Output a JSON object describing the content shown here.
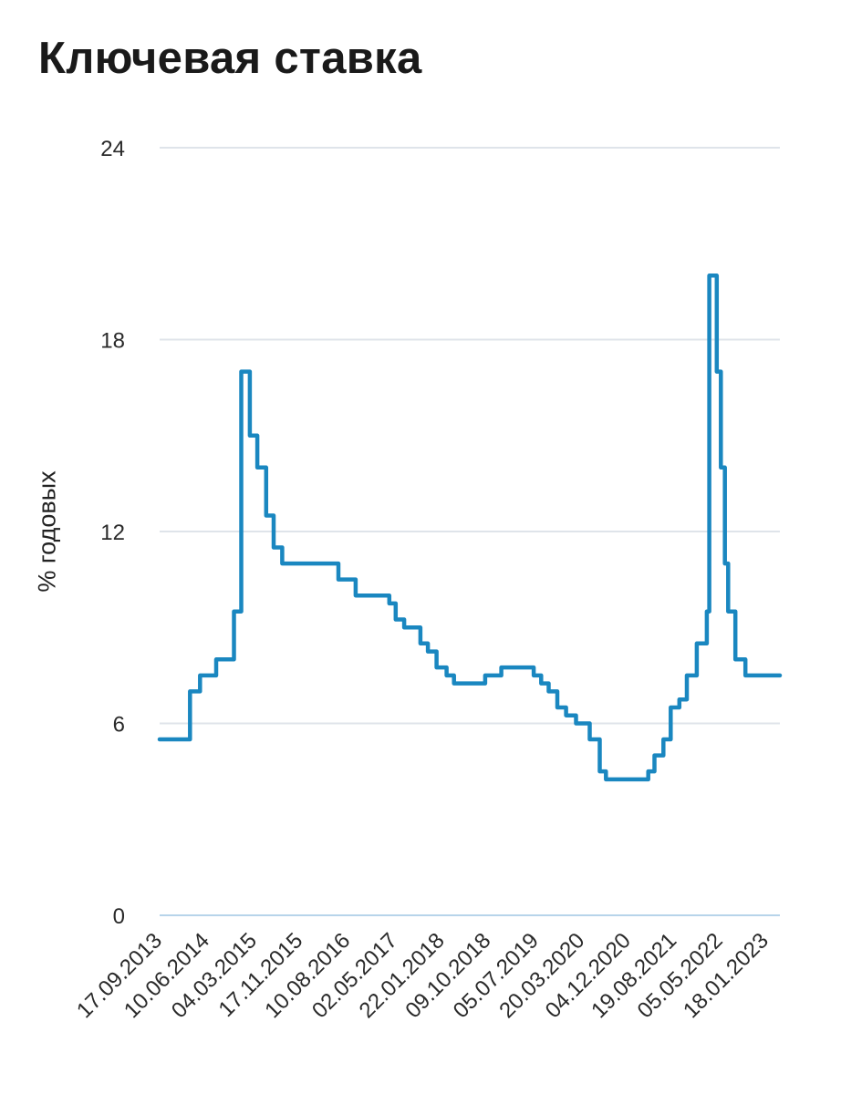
{
  "chart_data": {
    "type": "line",
    "title": "Ключевая ставка",
    "ylabel": "% годовых",
    "xlabel": "",
    "ylim": [
      0,
      24
    ],
    "yticks": [
      0,
      6,
      12,
      18,
      24
    ],
    "xlim": [
      "2013-09-13",
      "2023-04-01"
    ],
    "xticks": [
      {
        "date": "2013-09-17",
        "label": "17.09.2013"
      },
      {
        "date": "2014-06-10",
        "label": "10.06.2014"
      },
      {
        "date": "2015-03-04",
        "label": "04.03.2015"
      },
      {
        "date": "2015-11-17",
        "label": "17.11.2015"
      },
      {
        "date": "2016-08-10",
        "label": "10.08.2016"
      },
      {
        "date": "2017-05-02",
        "label": "02.05.2017"
      },
      {
        "date": "2018-01-22",
        "label": "22.01.2018"
      },
      {
        "date": "2018-10-09",
        "label": "09.10.2018"
      },
      {
        "date": "2019-07-05",
        "label": "05.07.2019"
      },
      {
        "date": "2020-03-20",
        "label": "20.03.2020"
      },
      {
        "date": "2020-12-04",
        "label": "04.12.2020"
      },
      {
        "date": "2021-08-19",
        "label": "19.08.2021"
      },
      {
        "date": "2022-05-05",
        "label": "05.05.2022"
      },
      {
        "date": "2023-01-18",
        "label": "18.01.2023"
      }
    ],
    "series": [
      {
        "name": "Ключевая ставка",
        "color": "#1a87c0",
        "step": true,
        "points": [
          [
            "2013-09-13",
            5.5
          ],
          [
            "2014-03-03",
            7.0
          ],
          [
            "2014-04-28",
            7.5
          ],
          [
            "2014-07-28",
            8.0
          ],
          [
            "2014-11-05",
            9.5
          ],
          [
            "2014-12-16",
            17.0
          ],
          [
            "2015-02-02",
            15.0
          ],
          [
            "2015-03-16",
            14.0
          ],
          [
            "2015-05-05",
            12.5
          ],
          [
            "2015-06-16",
            11.5
          ],
          [
            "2015-08-03",
            11.0
          ],
          [
            "2016-06-14",
            10.5
          ],
          [
            "2016-09-19",
            10.0
          ],
          [
            "2017-03-27",
            9.75
          ],
          [
            "2017-05-02",
            9.25
          ],
          [
            "2017-06-19",
            9.0
          ],
          [
            "2017-09-18",
            8.5
          ],
          [
            "2017-10-30",
            8.25
          ],
          [
            "2017-12-18",
            7.75
          ],
          [
            "2018-02-12",
            7.5
          ],
          [
            "2018-03-26",
            7.25
          ],
          [
            "2018-09-17",
            7.5
          ],
          [
            "2018-12-17",
            7.75
          ],
          [
            "2019-06-17",
            7.5
          ],
          [
            "2019-07-29",
            7.25
          ],
          [
            "2019-09-09",
            7.0
          ],
          [
            "2019-10-28",
            6.5
          ],
          [
            "2019-12-16",
            6.25
          ],
          [
            "2020-02-10",
            6.0
          ],
          [
            "2020-04-27",
            5.5
          ],
          [
            "2020-06-22",
            4.5
          ],
          [
            "2020-07-27",
            4.25
          ],
          [
            "2021-03-22",
            4.5
          ],
          [
            "2021-04-26",
            5.0
          ],
          [
            "2021-06-15",
            5.5
          ],
          [
            "2021-07-26",
            6.5
          ],
          [
            "2021-09-13",
            6.75
          ],
          [
            "2021-10-25",
            7.5
          ],
          [
            "2021-12-20",
            8.5
          ],
          [
            "2022-02-14",
            9.5
          ],
          [
            "2022-02-28",
            20.0
          ],
          [
            "2022-04-11",
            17.0
          ],
          [
            "2022-05-04",
            14.0
          ],
          [
            "2022-05-27",
            11.0
          ],
          [
            "2022-06-14",
            9.5
          ],
          [
            "2022-07-25",
            8.0
          ],
          [
            "2022-09-19",
            7.5
          ],
          [
            "2023-04-01",
            7.5
          ]
        ]
      }
    ]
  }
}
